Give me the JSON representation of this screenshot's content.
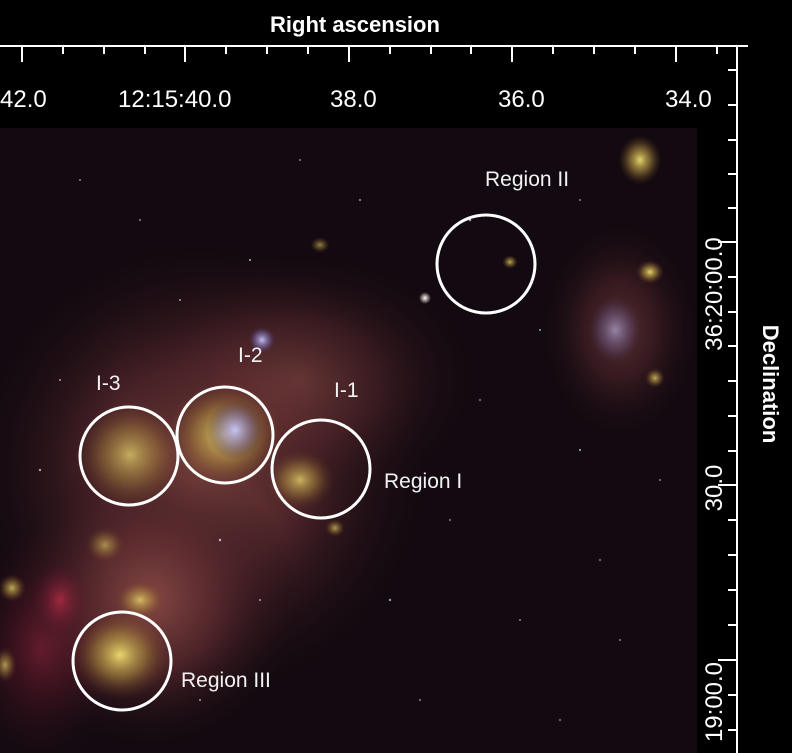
{
  "axes": {
    "top_title": "Right ascension",
    "right_title": "Declination",
    "ra_ticks": [
      "42.0",
      "12:15:40.0",
      "38.0",
      "36.0",
      "34.0"
    ],
    "dec_ticks": [
      "36:20:00.0",
      "30.0",
      "19:00.0"
    ]
  },
  "regions": [
    {
      "id": "region-ii",
      "label": "Region II"
    },
    {
      "id": "i-3",
      "label": "I-3"
    },
    {
      "id": "i-2",
      "label": "I-2"
    },
    {
      "id": "i-1",
      "label": "I-1"
    },
    {
      "id": "region-i",
      "label": "Region I"
    },
    {
      "id": "region-iii",
      "label": "Region III"
    }
  ],
  "colors": {
    "background": "#000000",
    "frame": "#ffffff",
    "nebula": "#e8d850",
    "emission": "#c02040"
  }
}
